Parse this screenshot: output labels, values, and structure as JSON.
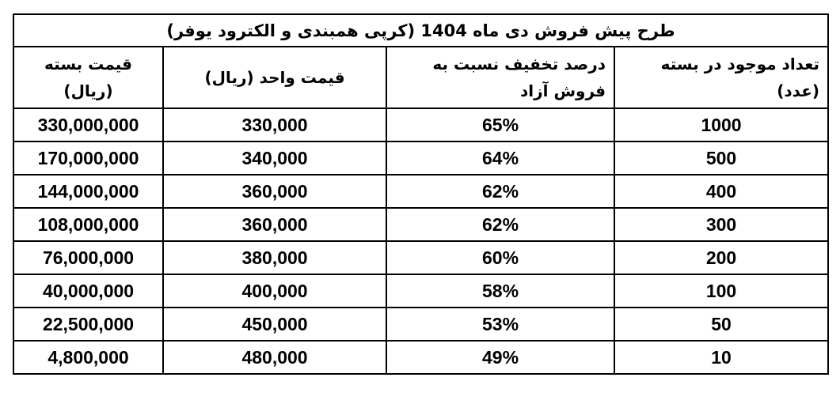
{
  "title": "طرح پیش فروش دی ماه 1404 (کرپی همبندی و  الکترود یوفر)",
  "headers": [
    "تعداد موجود در بسته (عدد)",
    "درصد تخفیف نسبت به فروش آزاد",
    "قیمت واحد (ریال)",
    "قیمت بسته (ریال)"
  ],
  "rows": [
    [
      "1000",
      "65%",
      "330,000",
      "330,000,000"
    ],
    [
      "500",
      "64%",
      "340,000",
      "170,000,000"
    ],
    [
      "400",
      "62%",
      "360,000",
      "144,000,000"
    ],
    [
      "300",
      "62%",
      "360,000",
      "108,000,000"
    ],
    [
      "200",
      "60%",
      "380,000",
      "76,000,000"
    ],
    [
      "100",
      "58%",
      "400,000",
      "40,000,000"
    ],
    [
      "50",
      "53%",
      "450,000",
      "22,500,000"
    ],
    [
      "10",
      "49%",
      "480,000",
      "4,800,000"
    ]
  ]
}
